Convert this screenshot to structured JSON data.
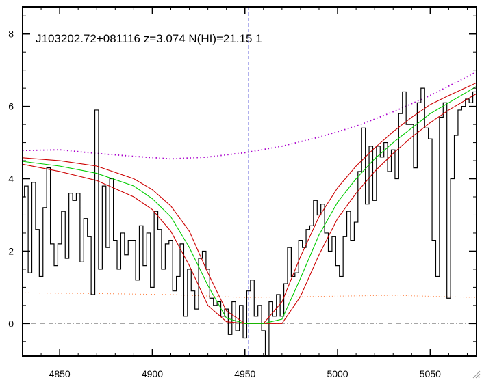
{
  "chart_data": {
    "type": "line",
    "title": "J103202.72+081116 z=3.074 N(HI)=21.15 1",
    "xlabel": "",
    "ylabel": "",
    "xlim": [
      4830,
      5075
    ],
    "ylim": [
      -0.9,
      8.75
    ],
    "x_ticks": [
      4850,
      4900,
      4950,
      5000,
      5050
    ],
    "y_ticks": [
      0,
      2,
      4,
      6,
      8
    ],
    "absorber_center": 4952,
    "grid": false,
    "colors": {
      "flux": "#000000",
      "model_best": "#00cc00",
      "model_bounds": "#cc0000",
      "continuum": "#aa00cc",
      "error": "#ff7f3f",
      "zero_line": "#999999",
      "center_line": "#2222cc"
    },
    "series": [
      {
        "style": "histogram-step",
        "x": [
          4830,
          4832,
          4834,
          4836,
          4838,
          4840,
          4842,
          4844,
          4846,
          4848,
          4850,
          4852,
          4854,
          4856,
          4858,
          4860,
          4862,
          4864,
          4866,
          4868,
          4870,
          4872,
          4874,
          4876,
          4878,
          4880,
          4882,
          4884,
          4886,
          4888,
          4890,
          4892,
          4894,
          4896,
          4898,
          4900,
          4902,
          4904,
          4906,
          4908,
          4910,
          4912,
          4914,
          4916,
          4918,
          4920,
          4922,
          4924,
          4926,
          4928,
          4930,
          4932,
          4934,
          4936,
          4938,
          4940,
          4942,
          4944,
          4946,
          4948,
          4950,
          4952,
          4954,
          4956,
          4958,
          4960,
          4962,
          4964,
          4966,
          4968,
          4970,
          4972,
          4974,
          4976,
          4978,
          4980,
          4982,
          4984,
          4986,
          4988,
          4990,
          4992,
          4994,
          4996,
          4998,
          5000,
          5002,
          5004,
          5006,
          5008,
          5010,
          5012,
          5014,
          5016,
          5018,
          5020,
          5022,
          5024,
          5026,
          5028,
          5030,
          5032,
          5034,
          5036,
          5038,
          5040,
          5042,
          5044,
          5046,
          5048,
          5050,
          5052,
          5054,
          5056,
          5058,
          5060,
          5062,
          5064,
          5066,
          5068,
          5070,
          5072,
          5074
        ],
        "y": [
          3.5,
          3.8,
          1.4,
          3.9,
          2.6,
          1.3,
          3.2,
          4.3,
          2.2,
          1.6,
          2.2,
          3.1,
          1.8,
          3.6,
          3.4,
          3.6,
          1.7,
          2.9,
          2.4,
          0.8,
          5.9,
          1.5,
          3.8,
          2.1,
          4.0,
          2.3,
          1.5,
          2.5,
          1.9,
          2.3,
          2.3,
          1.2,
          2.7,
          1.6,
          2.5,
          1.0,
          3.1,
          2.6,
          1.5,
          2.2,
          2.3,
          0.9,
          1.3,
          2.2,
          0.2,
          1.5,
          0.9,
          0.4,
          1.8,
          2.0,
          1.5,
          0.7,
          0.5,
          0.6,
          0.2,
          0.4,
          -0.3,
          0.6,
          -0.2,
          0.5,
          -0.4,
          0.9,
          1.2,
          0.2,
          0.5,
          -0.2,
          -0.9,
          0.6,
          0.2,
          0.8,
          0.2,
          1.1,
          2.1,
          1.3,
          1.4,
          2.3,
          2.1,
          2.6,
          2.7,
          3.4,
          3.0,
          3.3,
          2.5,
          2.0,
          2.4,
          1.6,
          1.3,
          2.4,
          3.1,
          2.3,
          2.8,
          4.2,
          5.4,
          3.3,
          4.9,
          3.4,
          4.9,
          4.6,
          5.0,
          4.2,
          4.8,
          4.0,
          5.8,
          6.4,
          5.5,
          5.5,
          4.3,
          6.1,
          6.5,
          5.4,
          5.1,
          2.3,
          1.3,
          5.7,
          6.1,
          0.7,
          4.0,
          5.2,
          5.9,
          6.0,
          6.2,
          6.1,
          6.4
        ]
      },
      {
        "x": [
          4830,
          4850,
          4870,
          4890,
          4900,
          4910,
          4920,
          4930,
          4940,
          4950,
          4960,
          4970,
          4980,
          4990,
          5000,
          5010,
          5020,
          5030,
          5040,
          5050,
          5060,
          5075
        ],
        "y": [
          4.48,
          4.35,
          4.15,
          3.8,
          3.45,
          2.95,
          2.1,
          1.05,
          0.15,
          0.0,
          0.0,
          0.12,
          1.25,
          2.45,
          3.35,
          4.0,
          4.55,
          5.0,
          5.4,
          5.8,
          6.1,
          6.55
        ]
      },
      {
        "x": [
          4830,
          4850,
          4870,
          4890,
          4900,
          4910,
          4920,
          4930,
          4940,
          4950,
          4960,
          4970,
          4980,
          4990,
          5000,
          5010,
          5020,
          5030,
          5040,
          5050,
          5060,
          5075
        ],
        "y": [
          4.58,
          4.5,
          4.35,
          4.0,
          3.7,
          3.25,
          2.55,
          1.4,
          0.35,
          0.0,
          0.0,
          0.6,
          1.85,
          2.95,
          3.75,
          4.35,
          4.85,
          5.3,
          5.7,
          6.05,
          6.3,
          6.65
        ]
      },
      {
        "x": [
          4830,
          4850,
          4870,
          4890,
          4900,
          4910,
          4920,
          4930,
          4940,
          4950,
          4960,
          4970,
          4980,
          4990,
          5000,
          5010,
          5020,
          5030,
          5040,
          5050,
          5060,
          5075
        ],
        "y": [
          4.4,
          4.2,
          3.95,
          3.5,
          3.15,
          2.55,
          1.6,
          0.5,
          0.05,
          0.0,
          0.0,
          0.0,
          0.75,
          1.9,
          2.9,
          3.6,
          4.2,
          4.7,
          5.15,
          5.55,
          5.9,
          6.35
        ]
      },
      {
        "style": "dotted",
        "x": [
          4830,
          4850,
          4870,
          4890,
          4910,
          4930,
          4950,
          4970,
          4990,
          5010,
          5030,
          5050,
          5075
        ],
        "y": [
          4.78,
          4.8,
          4.7,
          4.62,
          4.55,
          4.6,
          4.72,
          4.9,
          5.15,
          5.45,
          5.85,
          6.3,
          6.95
        ]
      },
      {
        "style": "dotted",
        "x": [
          4830,
          4870,
          4910,
          4950,
          4990,
          5030,
          5075
        ],
        "y": [
          0.85,
          0.83,
          0.8,
          0.72,
          0.75,
          0.78,
          0.72
        ]
      }
    ]
  }
}
